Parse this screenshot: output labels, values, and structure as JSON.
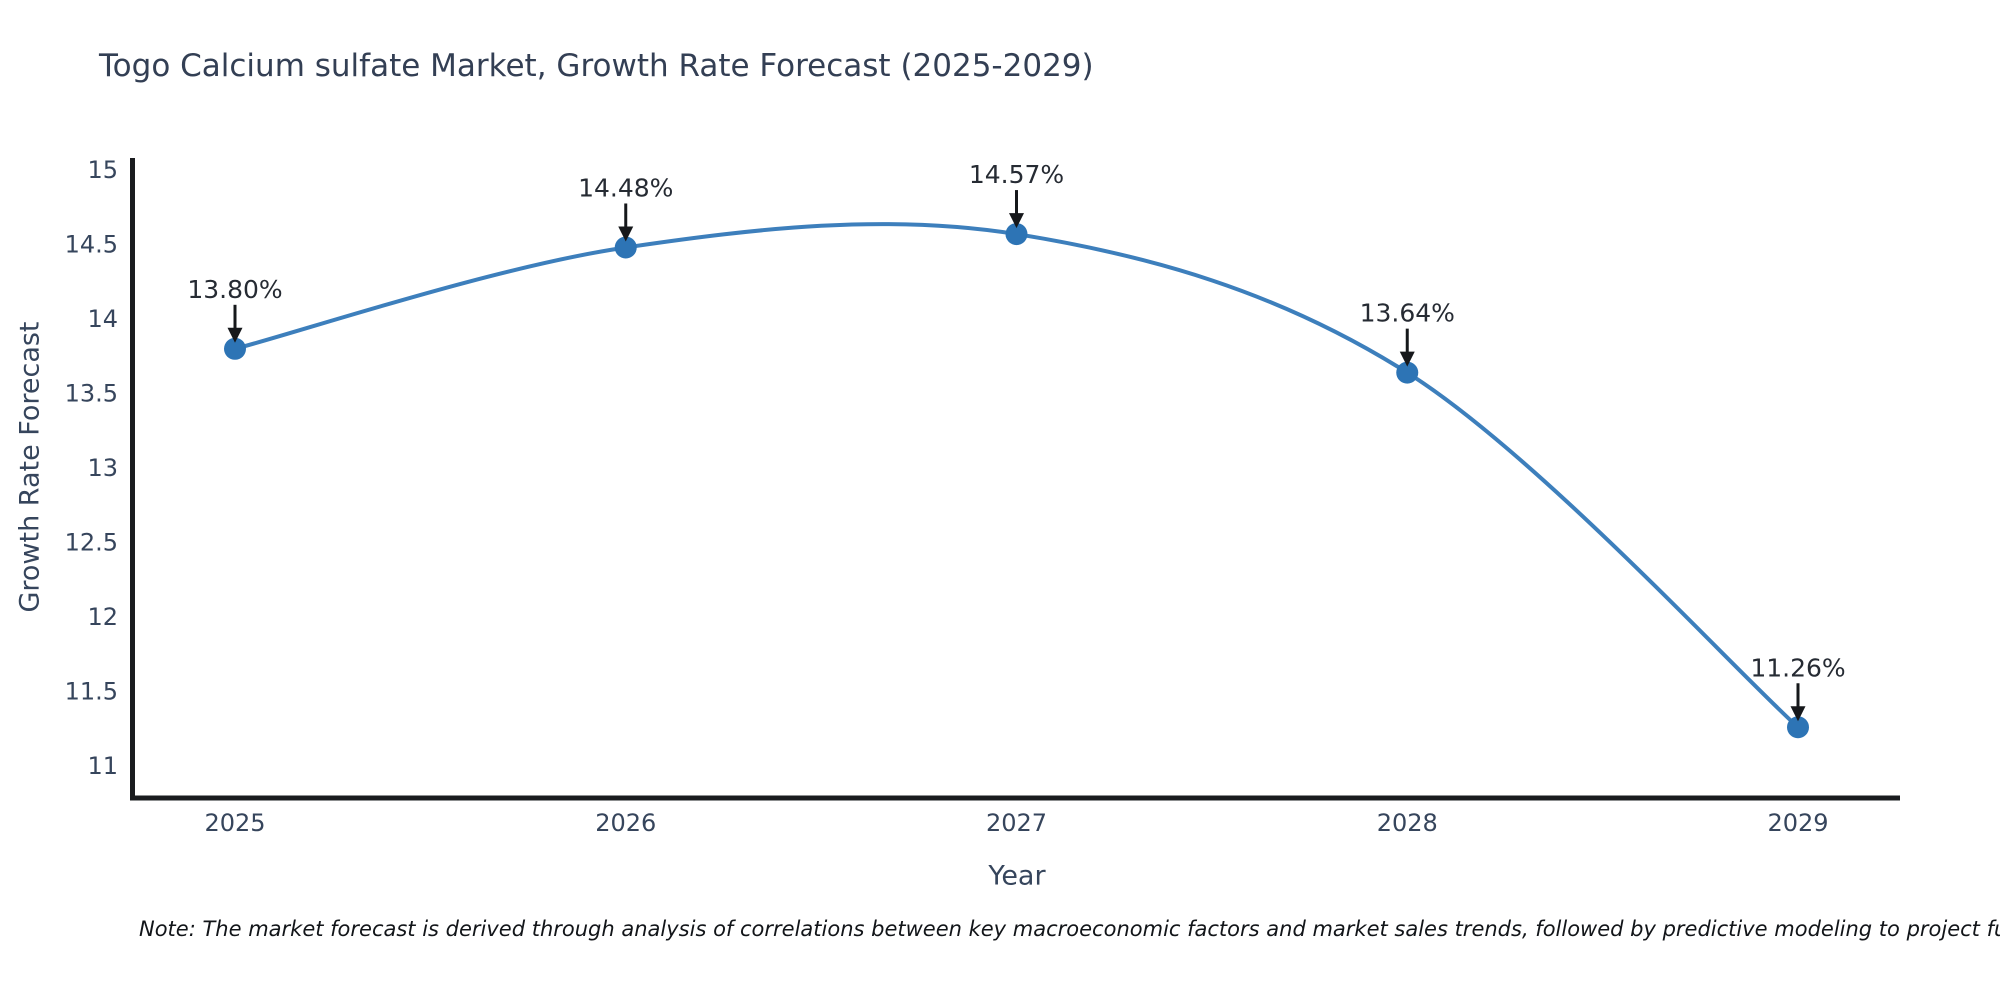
{
  "chart_data": {
    "type": "line",
    "title": "Togo Calcium sulfate Market, Growth Rate Forecast (2025-2029)",
    "xlabel": "Year",
    "ylabel": "Growth Rate Forecast",
    "categories": [
      "2025",
      "2026",
      "2027",
      "2028",
      "2029"
    ],
    "series": [
      {
        "name": "Growth Rate Forecast",
        "values": [
          13.8,
          14.48,
          14.57,
          13.64,
          11.26
        ]
      }
    ],
    "point_labels": [
      "13.80%",
      "14.48%",
      "14.57%",
      "13.64%",
      "11.26%"
    ],
    "ytick_labels": [
      "15",
      "14.5",
      "14",
      "13.5",
      "13",
      "12.5",
      "12",
      "11.5",
      "11"
    ],
    "ytick_values": [
      15,
      14.5,
      14,
      13.5,
      13,
      12.5,
      12,
      11.5,
      11
    ],
    "ylim": [
      10.75,
      15.08
    ],
    "curve": "spline",
    "grid": false,
    "legend": false,
    "colors": {
      "line": "#3d7fbc",
      "marker": "#2d74b5",
      "annotation_text": "#262b33",
      "arrow": "#16181b",
      "axis_spine": "#1a1c1f",
      "tick_text": "#36455c",
      "title_text": "#333f54"
    }
  },
  "footnote": "Note: The market forecast is derived through analysis of correlations between key macroeconomic factors and market sales trends, followed by predictive modeling to project future sales"
}
